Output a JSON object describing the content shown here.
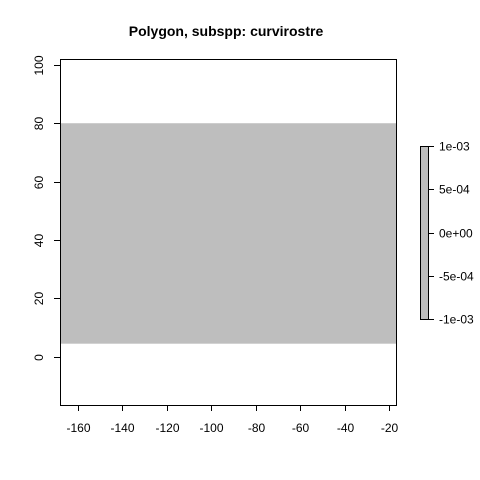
{
  "chart_data": {
    "type": "heatmap",
    "title": "Polygon, subspp: curvirostre",
    "xlabel": "",
    "ylabel": "",
    "xlim": [
      -168,
      -17
    ],
    "ylim": [
      -16.5,
      102
    ],
    "x_ticks": [
      -160,
      -140,
      -120,
      -100,
      -80,
      -60,
      -40,
      -20
    ],
    "y_ticks": [
      0,
      20,
      40,
      60,
      80,
      100
    ],
    "x_tick_labels": [
      "-160",
      "-140",
      "-120",
      "-100",
      "-80",
      "-60",
      "-40",
      "-20"
    ],
    "y_tick_labels": [
      "0",
      "20",
      "40",
      "60",
      "80",
      "100"
    ],
    "polygon": {
      "x_range": [
        -168,
        -17
      ],
      "y_range": [
        4.5,
        80
      ],
      "value": 0,
      "fill": "#bebebe"
    },
    "legend": {
      "placement": "right",
      "fill": "#bebebe",
      "ticks": [
        0.001,
        0.0005,
        0,
        -0.0005,
        -0.001
      ],
      "tick_labels": [
        "1e-03",
        "5e-04",
        "0e+00",
        "-5e-04",
        "-1e-03"
      ]
    },
    "grid": false,
    "colors": {
      "fill": "#bebebe",
      "axis": "#000000",
      "background": "#ffffff"
    }
  }
}
